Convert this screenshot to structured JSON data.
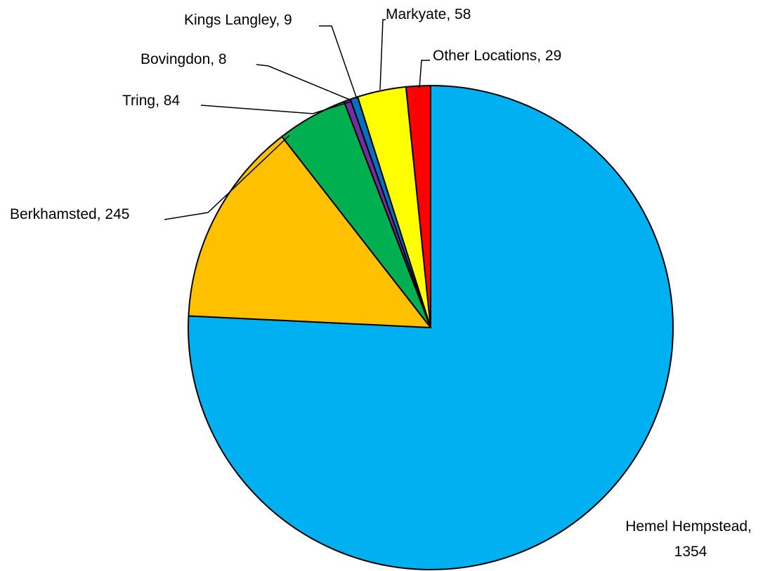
{
  "chart_data": {
    "type": "pie",
    "title": "",
    "start_angle": "12 o'clock, clockwise",
    "slices": [
      {
        "label": "Hemel Hempstead",
        "value": 1354,
        "color": "#00B0F0",
        "display_lines": [
          "Hemel Hempstead,",
          "1354"
        ]
      },
      {
        "label": "Berkhamsted",
        "value": 245,
        "color": "#FFC000",
        "display_lines": [
          "Berkhamsted, 245"
        ]
      },
      {
        "label": "Tring",
        "value": 84,
        "color": "#00B050",
        "display_lines": [
          "Tring, 84"
        ]
      },
      {
        "label": "Bovingdon",
        "value": 8,
        "color": "#7030A0",
        "display_lines": [
          "Bovingdon, 8"
        ]
      },
      {
        "label": "Kings Langley",
        "value": 9,
        "color": "#0070C0",
        "display_lines": [
          "Kings Langley, 9"
        ]
      },
      {
        "label": "Markyate",
        "value": 58,
        "color": "#FFFF00",
        "display_lines": [
          "Markyate, 58"
        ]
      },
      {
        "label": "Other Locations",
        "value": 29,
        "color": "#FF0000",
        "display_lines": [
          "Other Locations, 29"
        ]
      }
    ]
  }
}
